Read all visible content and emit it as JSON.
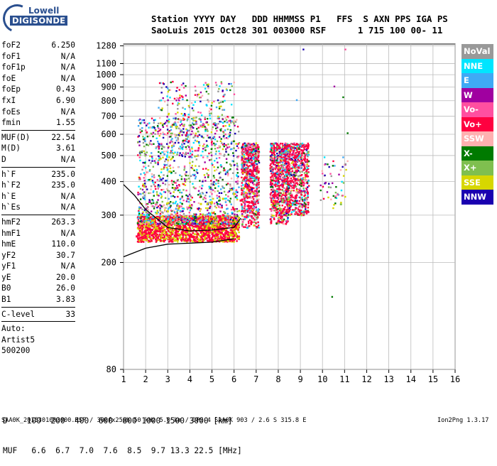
{
  "logo": {
    "top": "Lowell",
    "bottom": "DIGISONDE"
  },
  "header": {
    "line1": "Station YYYY DAY   DDD HHMMSS P1   FFS  S AXN PPS IGA PS",
    "line2": "SaoLuis 2015 Oct28 301 003000 RSF      1 715 100 00- 11"
  },
  "parameters": {
    "group1": [
      {
        "name": "foF2",
        "value": "6.250"
      },
      {
        "name": "foF1",
        "value": "N/A"
      },
      {
        "name": "foF1p",
        "value": "N/A"
      },
      {
        "name": "foE",
        "value": "N/A"
      },
      {
        "name": "foEp",
        "value": "0.43"
      },
      {
        "name": "fxI",
        "value": "6.90"
      },
      {
        "name": "foEs",
        "value": "N/A"
      },
      {
        "name": "fmin",
        "value": "1.55"
      }
    ],
    "group2": [
      {
        "name": "MUF(D)",
        "value": "22.54"
      },
      {
        "name": "M(D)",
        "value": "3.61"
      },
      {
        "name": "D",
        "value": "N/A"
      }
    ],
    "group3": [
      {
        "name": "h`F",
        "value": "235.0"
      },
      {
        "name": "h`F2",
        "value": "235.0"
      },
      {
        "name": "h`E",
        "value": "N/A"
      },
      {
        "name": "h`Es",
        "value": "N/A"
      }
    ],
    "group4": [
      {
        "name": "hmF2",
        "value": "263.3"
      },
      {
        "name": "hmF1",
        "value": "N/A"
      },
      {
        "name": "hmE",
        "value": "110.0"
      },
      {
        "name": "yF2",
        "value": "30.7"
      },
      {
        "name": "yF1",
        "value": "N/A"
      },
      {
        "name": "yE",
        "value": "20.0"
      },
      {
        "name": "B0",
        "value": "26.0"
      },
      {
        "name": "B1",
        "value": "3.83"
      }
    ],
    "clevel": {
      "name": "C-level",
      "value": "33"
    },
    "auto": [
      "Auto:",
      "Artist5",
      "500200"
    ]
  },
  "footer": {
    "d_line": "D    100  200  400  600  800 1000 1500 3000 [km]",
    "muf_line": "MUF   6.6  6.7  7.0  7.6  8.5  9.7 13.3 22.5 [MHz]",
    "file_line": "SAA0K_2015301003000.RSF / 300fx256h 50 kHz 5.0 km / DPS-4 SAA0K 903 / 2.6 S 315.8 E",
    "version": "Ion2Png 1.3.17"
  },
  "legend": [
    {
      "label": "NoVal",
      "color": "#999999"
    },
    {
      "label": "NNE",
      "color": "#00e5ff"
    },
    {
      "label": "E",
      "color": "#3fa9f5"
    },
    {
      "label": "W",
      "color": "#a000a0"
    },
    {
      "label": "Vo-",
      "color": "#ff4fa0"
    },
    {
      "label": "Vo+",
      "color": "#ff0040"
    },
    {
      "label": "SSW",
      "color": "#ffb0b0"
    },
    {
      "label": "X-",
      "color": "#007a00"
    },
    {
      "label": "X+",
      "color": "#7fbf4f"
    },
    {
      "label": "SSE",
      "color": "#d7d700"
    },
    {
      "label": "NNW",
      "color": "#1a00b0"
    }
  ],
  "chart_data": {
    "type": "scatter",
    "title": "",
    "xlabel": "",
    "ylabel": "",
    "xlim": [
      1,
      16
    ],
    "ylim": [
      80,
      1300
    ],
    "y_scale": "log",
    "x_ticks": [
      "1",
      "2",
      "3",
      "4",
      "5",
      "6",
      "7",
      "8",
      "9",
      "10",
      "11",
      "12",
      "13",
      "14",
      "15",
      "16"
    ],
    "y_ticks": [
      "80",
      "200",
      "300",
      "400",
      "500",
      "600",
      "700",
      "800",
      "900",
      "1000",
      "1100",
      "1280"
    ],
    "grid": true,
    "ionogram_trace": {
      "series": [
        {
          "name": "Vo+",
          "x": [
            1.6,
            2.0,
            2.5,
            3.0,
            3.5,
            4.0,
            4.5,
            5.0,
            5.5,
            6.0,
            6.3,
            6.6,
            7.0
          ],
          "y": [
            250,
            258,
            262,
            268,
            272,
            275,
            282,
            290,
            300,
            315,
            340,
            380,
            450
          ]
        },
        {
          "name": "SSE",
          "x": [
            1.8,
            2.5,
            3.0,
            3.5,
            4.0,
            4.5,
            5.0,
            5.5,
            6.0
          ],
          "y": [
            300,
            305,
            310,
            318,
            325,
            330,
            335,
            345,
            360
          ]
        },
        {
          "name": "X+",
          "x": [
            8.0,
            8.5,
            9.0,
            9.3
          ],
          "y": [
            330,
            360,
            400,
            430
          ]
        }
      ]
    },
    "profile_lines": [
      {
        "name": "virtual-height",
        "x": [
          1.0,
          1.5,
          2.0,
          3.0,
          4.0,
          5.0,
          6.0,
          6.3
        ],
        "y": [
          390,
          355,
          315,
          270,
          262,
          264,
          270,
          292
        ]
      },
      {
        "name": "lower-bound",
        "x": [
          1.0,
          2.0,
          3.0,
          4.0,
          5.0,
          6.0
        ],
        "y": [
          210,
          226,
          234,
          236,
          238,
          245
        ]
      }
    ]
  }
}
